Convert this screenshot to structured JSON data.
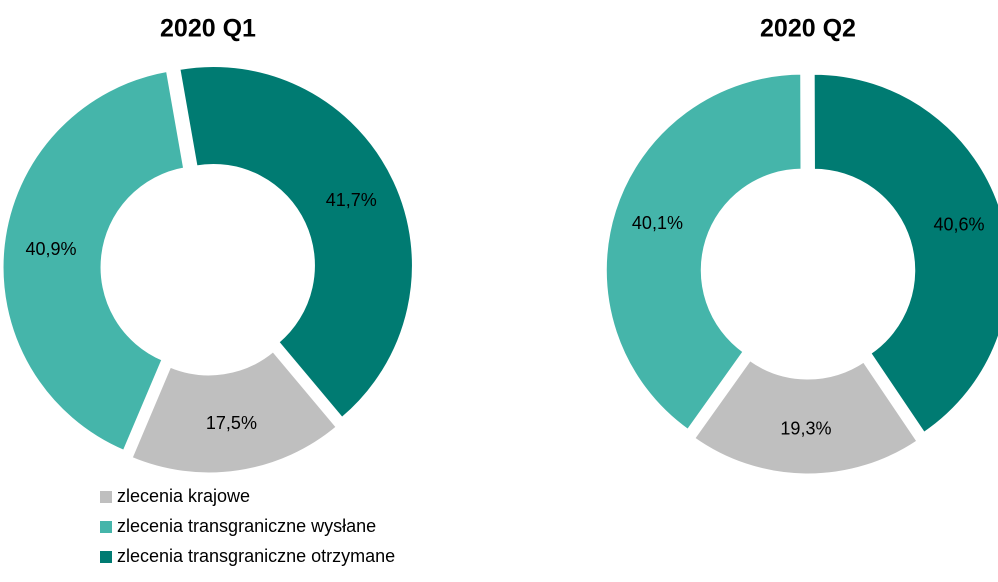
{
  "chart_data": [
    {
      "type": "pie",
      "title": "2020 Q1",
      "categories": [
        "zlecenia krajowe",
        "zlecenia transgraniczne wysłane",
        "zlecenia transgraniczne otrzymane"
      ],
      "colors": [
        "#bfbfbf",
        "#45b5aa",
        "#007b72"
      ],
      "values": [
        17.5,
        40.9,
        41.7
      ],
      "value_labels": [
        "17,5%",
        "40,9%",
        "41,7%"
      ]
    },
    {
      "type": "pie",
      "title": "2020 Q2",
      "values": [
        19.3,
        40.1,
        40.6
      ],
      "value_labels": [
        "19,3%",
        "40,1%",
        "40,6%"
      ]
    }
  ]
}
